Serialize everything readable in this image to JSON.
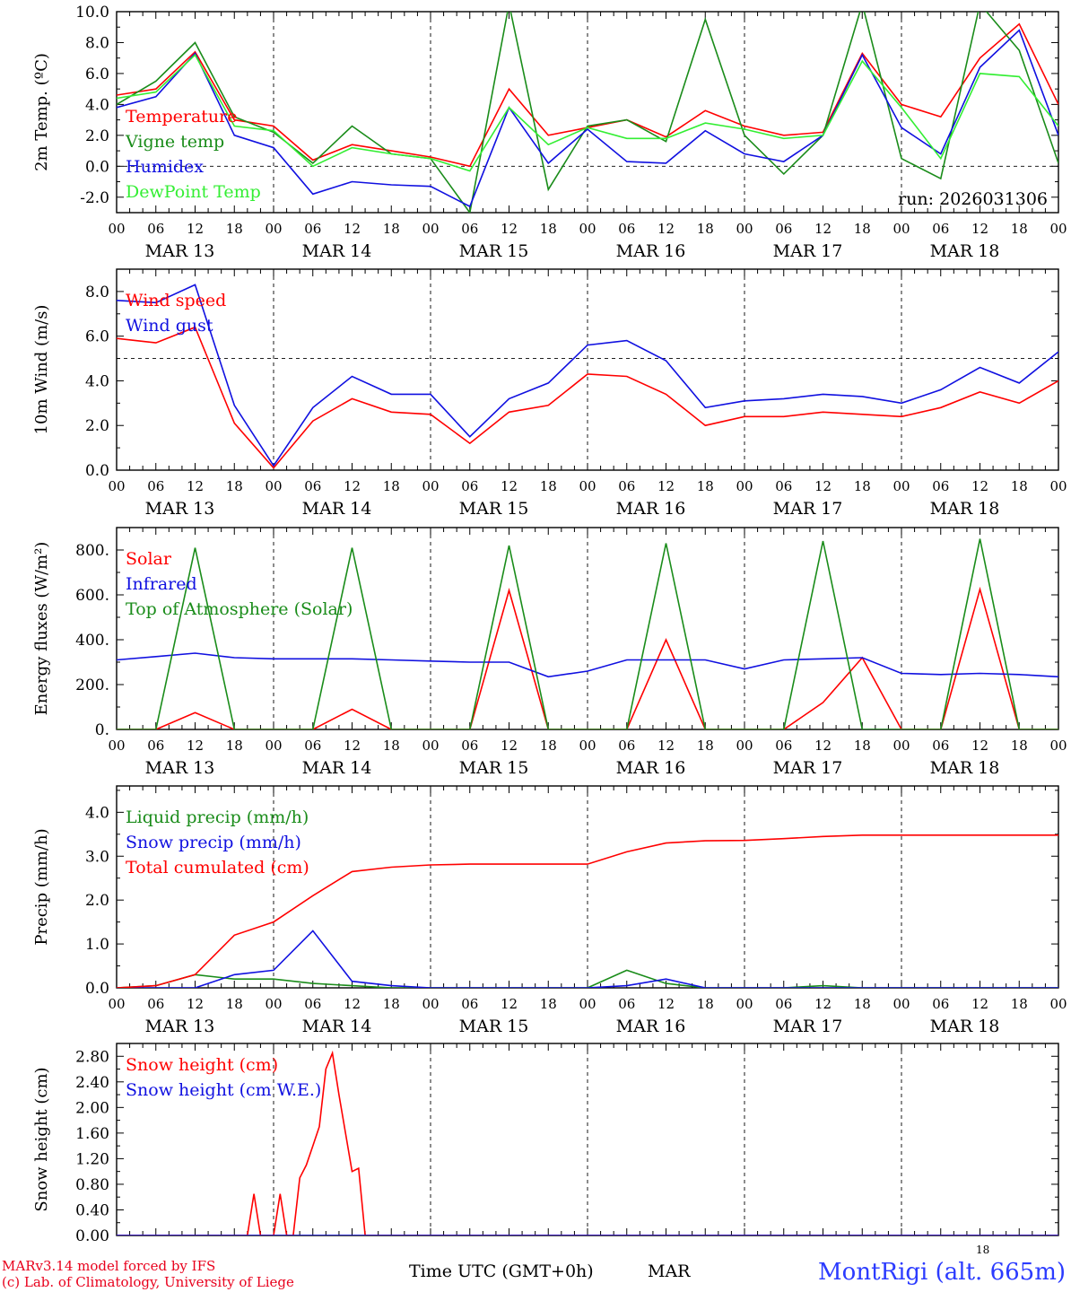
{
  "run_label": "run: 2026031306",
  "footer": {
    "model_line": "MARv3.14 model forced by IFS",
    "lab_line": "(c) Lab. of Climatology, University of Liege",
    "time_label": "Time UTC (GMT+0h)",
    "month_label": "MAR",
    "small_label": "18",
    "station": "MontRigi (alt. 665m)"
  },
  "colors": {
    "red": "#ff0000",
    "green": "#1a8c1a",
    "blue": "#1010e0",
    "lightgreen": "#33ee33",
    "axis": "#000000"
  },
  "time_axis": {
    "hour_ticks": [
      "00",
      "06",
      "12",
      "18",
      "00",
      "06",
      "12",
      "18",
      "00",
      "06",
      "12",
      "18",
      "00",
      "06",
      "12",
      "18",
      "00",
      "06",
      "12",
      "18",
      "00",
      "06",
      "12",
      "18",
      "00"
    ],
    "day_labels": [
      "MAR 13",
      "MAR 14",
      "MAR 15",
      "MAR 16",
      "MAR 17",
      "MAR 18"
    ],
    "hours_total": 144
  },
  "chart_data": [
    {
      "type": "line",
      "ylabel": "2m Temp. (ºC)",
      "ylim": [
        -3,
        10
      ],
      "yticks": [
        "-2.0",
        "0.0",
        "2.0",
        "4.0",
        "6.0",
        "8.0",
        "10.0"
      ],
      "ytick_values": [
        -2,
        0,
        2,
        4,
        6,
        8,
        10
      ],
      "ref_line": 0,
      "x": [
        0,
        6,
        12,
        18,
        24,
        30,
        36,
        42,
        48,
        54,
        60,
        66,
        72,
        78,
        84,
        90,
        96,
        102,
        108,
        114,
        120,
        126,
        132,
        138,
        144
      ],
      "series": [
        {
          "name": "Temperature",
          "color": "red",
          "values": [
            4.6,
            5.0,
            7.4,
            3.0,
            2.6,
            0.4,
            1.4,
            1.0,
            0.6,
            0.0,
            5.0,
            2.0,
            2.5,
            3.0,
            1.9,
            3.6,
            2.6,
            2.0,
            2.2,
            7.3,
            4.0,
            3.2,
            7.0,
            9.2,
            4.0
          ]
        },
        {
          "name": "Vigne temp",
          "color": "green",
          "values": [
            4.0,
            5.5,
            8.0,
            3.2,
            2.2,
            0.2,
            2.6,
            0.8,
            0.5,
            -3.0,
            10.5,
            -1.5,
            2.6,
            3.0,
            1.6,
            9.5,
            2.0,
            -0.5,
            2.0,
            10.5,
            0.5,
            -0.8,
            10.5,
            7.5,
            0.2
          ]
        },
        {
          "name": "Humidex",
          "color": "blue",
          "values": [
            3.8,
            4.5,
            7.3,
            2.0,
            1.2,
            -1.8,
            -1.0,
            -1.2,
            -1.3,
            -2.6,
            3.8,
            0.2,
            2.4,
            0.3,
            0.2,
            2.3,
            0.8,
            0.3,
            2.0,
            7.2,
            2.5,
            0.8,
            6.4,
            8.8,
            2.0
          ]
        },
        {
          "name": "DewPoint Temp",
          "color": "lightgreen",
          "values": [
            4.4,
            4.8,
            7.2,
            2.6,
            2.3,
            0.0,
            1.2,
            0.8,
            0.5,
            -0.3,
            3.8,
            1.4,
            2.5,
            1.8,
            1.8,
            2.8,
            2.4,
            1.8,
            2.0,
            6.8,
            3.8,
            0.5,
            6.0,
            5.8,
            2.6
          ]
        }
      ],
      "run_label_show": true
    },
    {
      "type": "line",
      "ylabel": "10m Wind (m/s)",
      "ylim": [
        0,
        9
      ],
      "yticks": [
        "0.0",
        "2.0",
        "4.0",
        "6.0",
        "8.0"
      ],
      "ytick_values": [
        0,
        2,
        4,
        6,
        8
      ],
      "ref_line": 5,
      "x": [
        0,
        6,
        12,
        18,
        24,
        30,
        36,
        42,
        48,
        54,
        60,
        66,
        72,
        78,
        84,
        90,
        96,
        102,
        108,
        114,
        120,
        126,
        132,
        138,
        144
      ],
      "series": [
        {
          "name": "Wind speed",
          "color": "red",
          "values": [
            5.9,
            5.7,
            6.4,
            2.1,
            0.1,
            2.2,
            3.2,
            2.6,
            2.5,
            1.2,
            2.6,
            2.9,
            4.3,
            4.2,
            3.4,
            2.0,
            2.4,
            2.4,
            2.6,
            2.5,
            2.4,
            2.8,
            3.5,
            3.0,
            4.0
          ]
        },
        {
          "name": "Wind gust",
          "color": "blue",
          "values": [
            7.6,
            7.5,
            8.3,
            2.9,
            0.2,
            2.8,
            4.2,
            3.4,
            3.4,
            1.5,
            3.2,
            3.9,
            5.6,
            5.8,
            4.9,
            2.8,
            3.1,
            3.2,
            3.4,
            3.3,
            3.0,
            3.6,
            4.6,
            3.9,
            5.3
          ]
        }
      ],
      "run_label_show": false
    },
    {
      "type": "line",
      "ylabel": "Energy fluxes (W/m²)",
      "ylim": [
        0,
        900
      ],
      "yticks": [
        "0.",
        "200.",
        "400.",
        "600.",
        "800."
      ],
      "ytick_values": [
        0,
        200,
        400,
        600,
        800
      ],
      "ref_line": null,
      "x": [
        0,
        6,
        12,
        18,
        24,
        30,
        36,
        42,
        48,
        54,
        60,
        66,
        72,
        78,
        84,
        90,
        96,
        102,
        108,
        114,
        120,
        126,
        132,
        138,
        144
      ],
      "series": [
        {
          "name": "Solar",
          "color": "red",
          "values": [
            0,
            0,
            75,
            0,
            0,
            0,
            90,
            0,
            0,
            0,
            620,
            0,
            0,
            0,
            400,
            0,
            0,
            0,
            120,
            320,
            0,
            0,
            625,
            0,
            0
          ]
        },
        {
          "name": "Infrared",
          "color": "blue",
          "values": [
            310,
            325,
            340,
            320,
            315,
            315,
            315,
            310,
            305,
            300,
            300,
            235,
            260,
            310,
            310,
            310,
            270,
            310,
            315,
            320,
            250,
            245,
            250,
            245,
            235
          ]
        },
        {
          "name": "Top of Atmosphere (Solar)",
          "color": "green",
          "values": [
            0,
            0,
            810,
            0,
            0,
            0,
            810,
            0,
            0,
            0,
            820,
            0,
            0,
            0,
            830,
            0,
            0,
            0,
            840,
            0,
            0,
            0,
            850,
            0,
            0
          ]
        }
      ],
      "run_label_show": false
    },
    {
      "type": "line",
      "ylabel": "Precip (mm/h)",
      "ylim": [
        0,
        4.6
      ],
      "yticks": [
        "0.0",
        "1.0",
        "2.0",
        "3.0",
        "4.0"
      ],
      "ytick_values": [
        0,
        1,
        2,
        3,
        4
      ],
      "ref_line": null,
      "x": [
        0,
        6,
        12,
        18,
        24,
        30,
        36,
        42,
        48,
        54,
        60,
        66,
        72,
        78,
        84,
        90,
        96,
        102,
        108,
        114,
        120,
        126,
        132,
        138,
        144
      ],
      "series": [
        {
          "name": "Liquid precip (mm/h)",
          "color": "green",
          "values": [
            0,
            0.05,
            0.3,
            0.2,
            0.2,
            0.1,
            0.05,
            0,
            0,
            0,
            0,
            0,
            0,
            0.4,
            0.1,
            0,
            0,
            0,
            0.05,
            0,
            0,
            0,
            0,
            0,
            0
          ]
        },
        {
          "name": "Snow precip (mm/h)",
          "color": "blue",
          "values": [
            0,
            0,
            0,
            0.3,
            0.4,
            1.3,
            0.15,
            0.05,
            0,
            0,
            0,
            0,
            0,
            0.05,
            0.2,
            0,
            0,
            0,
            0,
            0,
            0,
            0,
            0,
            0,
            0
          ]
        },
        {
          "name": "Total cumulated (cm)",
          "color": "red",
          "values": [
            0,
            0.05,
            0.3,
            1.2,
            1.5,
            2.1,
            2.65,
            2.75,
            2.8,
            2.82,
            2.82,
            2.82,
            2.82,
            3.1,
            3.3,
            3.35,
            3.36,
            3.4,
            3.45,
            3.48,
            3.48,
            3.48,
            3.48,
            3.48,
            3.48
          ]
        }
      ],
      "run_label_show": false
    },
    {
      "type": "line",
      "ylabel": "Snow height (cm)",
      "ylim": [
        0,
        3.0
      ],
      "yticks": [
        "0.00",
        "0.40",
        "0.80",
        "1.20",
        "1.60",
        "2.00",
        "2.40",
        "2.80"
      ],
      "ytick_values": [
        0,
        0.4,
        0.8,
        1.2,
        1.6,
        2.0,
        2.4,
        2.8
      ],
      "ref_line": null,
      "x": [
        0,
        6,
        12,
        18,
        20,
        21,
        22,
        23,
        24,
        25,
        26,
        27,
        28,
        29,
        30,
        31,
        32,
        33,
        34,
        35,
        36,
        37,
        38,
        39,
        40,
        144
      ],
      "series": [
        {
          "name": "Snow height (cm)",
          "color": "red",
          "values": [
            0,
            0,
            0,
            0,
            0,
            0.65,
            0,
            0,
            0,
            0.65,
            0,
            0,
            0.9,
            1.1,
            1.4,
            1.7,
            2.6,
            2.85,
            2.2,
            1.6,
            1.0,
            1.05,
            0,
            0,
            0,
            0
          ]
        },
        {
          "name": "Snow height (cm W.E.)",
          "color": "blue",
          "values": [
            0,
            0,
            0,
            0,
            0,
            0,
            0,
            0,
            0,
            0,
            0,
            0,
            0,
            0,
            0,
            0,
            0,
            0,
            0,
            0,
            0,
            0,
            0,
            0,
            0,
            0
          ]
        }
      ],
      "run_label_show": false
    }
  ]
}
